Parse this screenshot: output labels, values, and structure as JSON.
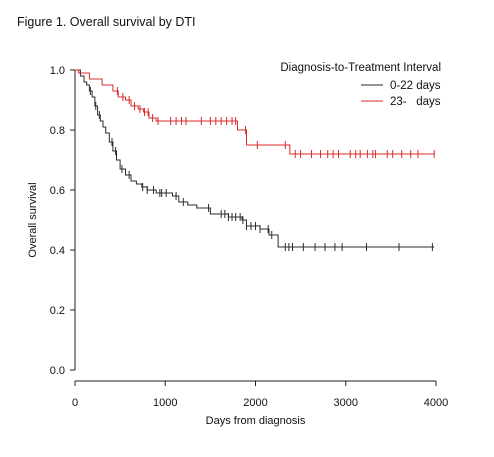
{
  "figure": {
    "title": "Figure 1. Overall survival by DTI"
  },
  "chart_data": {
    "type": "line",
    "step": true,
    "xlabel": "Days from diagnosis",
    "ylabel": "Overall survival",
    "xlim": [
      0,
      4000
    ],
    "ylim": [
      0,
      1.0
    ],
    "x_ticks": [
      0,
      1000,
      2000,
      3000,
      4000
    ],
    "y_ticks": [
      0.0,
      0.2,
      0.4,
      0.6,
      0.8,
      1.0
    ],
    "x_tick_labels": [
      "0",
      "1000",
      "2000",
      "3000",
      "4000"
    ],
    "y_tick_labels": [
      "0.0",
      "0.2",
      "0.4",
      "0.6",
      "0.8",
      "1.0"
    ],
    "grid": false,
    "legend": {
      "title": "Diagnosis-to-Treatment Interval",
      "position": "top-right"
    },
    "series": [
      {
        "name": "0-22 days",
        "color": "#2b2b2b",
        "x": [
          0,
          60,
          100,
          130,
          160,
          190,
          220,
          250,
          280,
          310,
          340,
          380,
          420,
          460,
          500,
          560,
          620,
          680,
          740,
          800,
          900,
          1000,
          1080,
          1150,
          1250,
          1350,
          1500,
          1700,
          1850,
          1900,
          2050,
          2150,
          2250,
          3980
        ],
        "y": [
          1.0,
          0.98,
          0.96,
          0.95,
          0.93,
          0.91,
          0.88,
          0.85,
          0.83,
          0.81,
          0.79,
          0.76,
          0.73,
          0.7,
          0.67,
          0.65,
          0.63,
          0.62,
          0.61,
          0.6,
          0.59,
          0.59,
          0.58,
          0.56,
          0.55,
          0.54,
          0.52,
          0.51,
          0.5,
          0.48,
          0.47,
          0.45,
          0.41,
          0.41
        ],
        "censor_x": [
          170,
          230,
          270,
          410,
          450,
          520,
          600,
          750,
          800,
          870,
          940,
          960,
          1010,
          1120,
          1200,
          1480,
          1620,
          1660,
          1700,
          1740,
          1780,
          1830,
          1860,
          1900,
          1950,
          2000,
          2050,
          2140,
          2180,
          2330,
          2370,
          2410,
          2530,
          2660,
          2770,
          2880,
          2960,
          3230,
          3590,
          3960
        ]
      },
      {
        "name": "23-   days",
        "color": "#d72b2b",
        "x": [
          0,
          40,
          160,
          300,
          420,
          480,
          560,
          620,
          700,
          760,
          820,
          900,
          1800,
          1900,
          2380,
          3980
        ],
        "y": [
          1.0,
          0.99,
          0.97,
          0.95,
          0.93,
          0.91,
          0.9,
          0.88,
          0.87,
          0.86,
          0.84,
          0.83,
          0.8,
          0.75,
          0.72,
          0.72
        ],
        "censor_x": [
          470,
          530,
          600,
          660,
          720,
          770,
          810,
          860,
          920,
          1060,
          1120,
          1180,
          1230,
          1400,
          1500,
          1560,
          1620,
          1680,
          1740,
          1780,
          1890,
          2020,
          2330,
          2440,
          2500,
          2620,
          2720,
          2800,
          2860,
          2920,
          3050,
          3110,
          3160,
          3240,
          3300,
          3330,
          3460,
          3520,
          3620,
          3720,
          3800,
          3980
        ]
      }
    ]
  }
}
